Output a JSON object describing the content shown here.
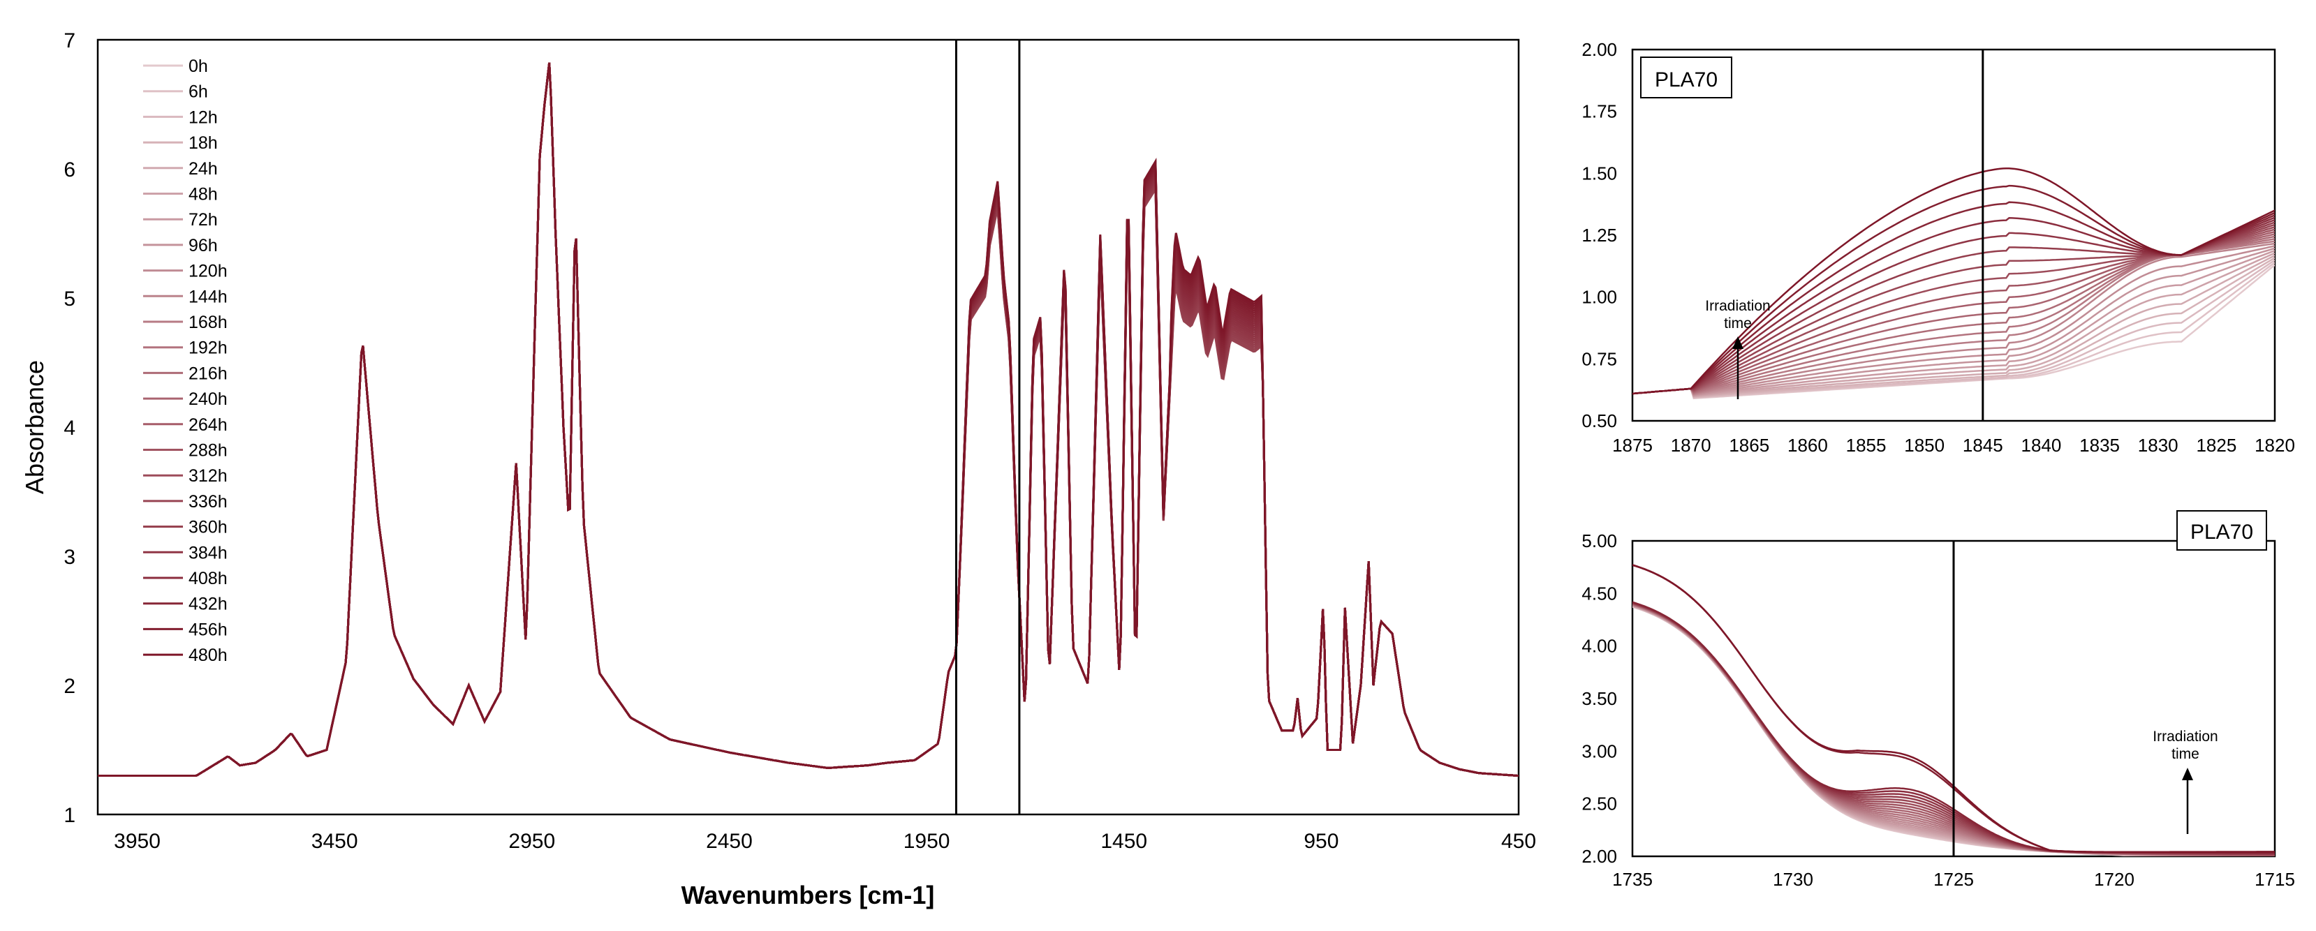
{
  "colors": {
    "dark": "#7e1628",
    "light": "#e3c9cd",
    "axis": "#000000"
  },
  "chart_data": [
    {
      "id": "main",
      "type": "line",
      "xlabel": "Wavenumbers [cm-1]",
      "ylabel": "Absorbance",
      "xlim": [
        4050,
        450
      ],
      "ylim": [
        1,
        7
      ],
      "xticks": [
        3950,
        3450,
        2950,
        2450,
        1950,
        1450,
        950,
        450
      ],
      "yticks": [
        1,
        2,
        3,
        4,
        5,
        6,
        7
      ],
      "x_reversed": true,
      "legend_placement": "top-left",
      "series_names": [
        "0h",
        "6h",
        "12h",
        "18h",
        "24h",
        "48h",
        "72h",
        "96h",
        "120h",
        "144h",
        "168h",
        "192h",
        "216h",
        "240h",
        "264h",
        "288h",
        "312h",
        "336h",
        "360h",
        "384h",
        "408h",
        "432h",
        "456h",
        "480h"
      ],
      "markers_x": [
        1875,
        1715
      ],
      "profile": [
        [
          4050,
          1.3
        ],
        [
          3800,
          1.3
        ],
        [
          3720,
          1.45
        ],
        [
          3690,
          1.38
        ],
        [
          3650,
          1.4
        ],
        [
          3600,
          1.5
        ],
        [
          3560,
          1.63
        ],
        [
          3520,
          1.45
        ],
        [
          3470,
          1.5
        ],
        [
          3420,
          2.2
        ],
        [
          3380,
          4.7
        ],
        [
          3340,
          3.3
        ],
        [
          3300,
          2.4
        ],
        [
          3250,
          2.05
        ],
        [
          3200,
          1.85
        ],
        [
          3150,
          1.7
        ],
        [
          3110,
          2.0
        ],
        [
          3070,
          1.72
        ],
        [
          3030,
          1.95
        ],
        [
          2990,
          3.72
        ],
        [
          2965,
          2.3
        ],
        [
          2945,
          4.5
        ],
        [
          2930,
          6.1
        ],
        [
          2918,
          6.5
        ],
        [
          2905,
          6.85
        ],
        [
          2890,
          5.5
        ],
        [
          2870,
          4.0
        ],
        [
          2855,
          3.2
        ],
        [
          2840,
          5.7
        ],
        [
          2820,
          3.3
        ],
        [
          2780,
          2.1
        ],
        [
          2700,
          1.75
        ],
        [
          2600,
          1.58
        ],
        [
          2450,
          1.48
        ],
        [
          2300,
          1.4
        ],
        [
          2200,
          1.36
        ],
        [
          2100,
          1.38
        ],
        [
          2050,
          1.4
        ],
        [
          1980,
          1.42
        ],
        [
          1920,
          1.55
        ],
        [
          1895,
          2.1
        ],
        [
          1875,
          2.25
        ],
        [
          1862,
          3.2
        ],
        [
          1840,
          4.9
        ],
        [
          1820,
          5.0
        ],
        [
          1800,
          5.1
        ],
        [
          1790,
          5.5
        ],
        [
          1770,
          5.8
        ],
        [
          1755,
          5.1
        ],
        [
          1740,
          4.7
        ],
        [
          1720,
          3.0
        ],
        [
          1700,
          1.75
        ],
        [
          1680,
          4.6
        ],
        [
          1660,
          4.8
        ],
        [
          1640,
          2.0
        ],
        [
          1600,
          5.3
        ],
        [
          1580,
          2.3
        ],
        [
          1540,
          2.0
        ],
        [
          1510,
          5.4
        ],
        [
          1480,
          3.2
        ],
        [
          1460,
          2.0
        ],
        [
          1440,
          5.9
        ],
        [
          1420,
          2.0
        ],
        [
          1400,
          5.8
        ],
        [
          1370,
          5.95
        ],
        [
          1350,
          3.3
        ],
        [
          1320,
          5.2
        ],
        [
          1300,
          4.9
        ],
        [
          1280,
          4.85
        ],
        [
          1260,
          5.0
        ],
        [
          1240,
          4.6
        ],
        [
          1220,
          4.8
        ],
        [
          1200,
          4.4
        ],
        [
          1180,
          4.75
        ],
        [
          1150,
          4.7
        ],
        [
          1120,
          4.65
        ],
        [
          1100,
          4.7
        ],
        [
          1085,
          1.9
        ],
        [
          1050,
          1.65
        ],
        [
          1020,
          1.65
        ],
        [
          1010,
          1.9
        ],
        [
          1000,
          1.6
        ],
        [
          960,
          1.75
        ],
        [
          945,
          2.65
        ],
        [
          935,
          1.5
        ],
        [
          900,
          1.5
        ],
        [
          890,
          2.6
        ],
        [
          870,
          1.55
        ],
        [
          850,
          2.0
        ],
        [
          830,
          2.96
        ],
        [
          818,
          2.0
        ],
        [
          800,
          2.5
        ],
        [
          770,
          2.4
        ],
        [
          740,
          1.8
        ],
        [
          700,
          1.5
        ],
        [
          650,
          1.4
        ],
        [
          600,
          1.35
        ],
        [
          550,
          1.32
        ],
        [
          450,
          1.3
        ]
      ]
    },
    {
      "id": "inset1",
      "type": "line",
      "label": "PLA70",
      "annotation": "Irradiation time",
      "xlim": [
        1875,
        1820
      ],
      "ylim": [
        0.5,
        2.0
      ],
      "xticks": [
        1875,
        1870,
        1865,
        1860,
        1855,
        1850,
        1845,
        1840,
        1835,
        1830,
        1825,
        1820
      ],
      "yticks": [
        0.5,
        0.75,
        1.0,
        1.25,
        1.5,
        1.75,
        2.0
      ],
      "ytick_labels": [
        "0.50",
        "0.75",
        "1.00",
        "1.25",
        "1.50",
        "1.75",
        "2.00"
      ],
      "vline_x": 1845,
      "series_count": 24,
      "peak_x": 1843,
      "peak_range": [
        0.73,
        1.52
      ],
      "shoulder_x": 1828,
      "shoulder_y": 1.17
    },
    {
      "id": "inset2",
      "type": "line",
      "label": "PLA70",
      "annotation": "Irradiation time",
      "xlim": [
        1735,
        1715
      ],
      "ylim": [
        2.0,
        5.0
      ],
      "xticks": [
        1735,
        1730,
        1725,
        1720,
        1715
      ],
      "yticks": [
        2.0,
        2.5,
        3.0,
        3.5,
        4.0,
        4.5,
        5.0
      ],
      "ytick_labels": [
        "2.00",
        "2.50",
        "3.00",
        "3.50",
        "4.00",
        "4.50",
        "5.00"
      ],
      "vline_x": 1725,
      "series_count": 24
    }
  ]
}
